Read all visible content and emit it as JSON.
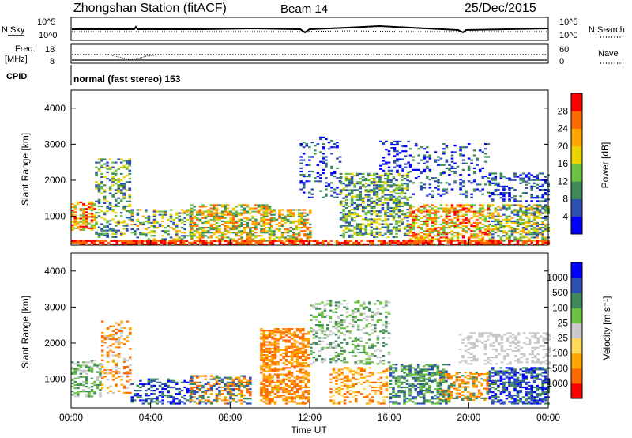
{
  "header": {
    "station": "Zhongshan Station (fitACF)",
    "beam": "Beam 14",
    "date": "25/Dec/2015"
  },
  "sky_panel": {
    "left_label": "N.Sky",
    "right_label": "N.Search",
    "left_ticks": [
      "10^5",
      "10^0"
    ],
    "right_ticks": [
      "10^5",
      "10^0"
    ]
  },
  "freq_panel": {
    "left_label_1": "Freq.",
    "left_label_2": "[MHz]",
    "right_label": "Nave",
    "left_ticks": [
      "18",
      "8"
    ],
    "right_ticks": [
      "60",
      "0"
    ]
  },
  "cpid": {
    "label": "CPID",
    "text": "normal (fast stereo) 153"
  },
  "colors": {
    "power": [
      "#0000ff",
      "#2e4fb0",
      "#3e8a5b",
      "#6cc040",
      "#e8d200",
      "#ffa500",
      "#ff6a00",
      "#ff0000"
    ],
    "velocity": [
      "#ff0000",
      "#ff6a00",
      "#ffa500",
      "#ffd75a",
      "#c8c8c8",
      "#6cc040",
      "#3e8a5b",
      "#2e4fb0",
      "#0000ff"
    ]
  },
  "chart_data": [
    {
      "type": "heatmap",
      "ylabel": "Slant Range [km]",
      "y_ticks": [
        "1000",
        "2000",
        "3000",
        "4000"
      ],
      "ylim": [
        200,
        4500
      ],
      "colorbar": {
        "label": "Power [dB]",
        "ticks": [
          "4",
          "8",
          "12",
          "16",
          "20",
          "24",
          "28"
        ]
      }
    },
    {
      "type": "heatmap",
      "ylabel": "Slant Range [km]",
      "y_ticks": [
        "1000",
        "2000",
        "3000",
        "4000"
      ],
      "ylim": [
        200,
        4500
      ],
      "xlabel": "Time UT",
      "x_ticks": [
        "00:00",
        "04:00",
        "08:00",
        "12:00",
        "16:00",
        "20:00",
        "00:00"
      ],
      "xlim_hours": [
        0,
        24
      ],
      "colorbar": {
        "label": "Velocity [m s⁻¹]",
        "ticks": [
          "1000",
          "500",
          "100",
          "25",
          "−25",
          "−100",
          "−500",
          "−1000"
        ]
      }
    }
  ]
}
